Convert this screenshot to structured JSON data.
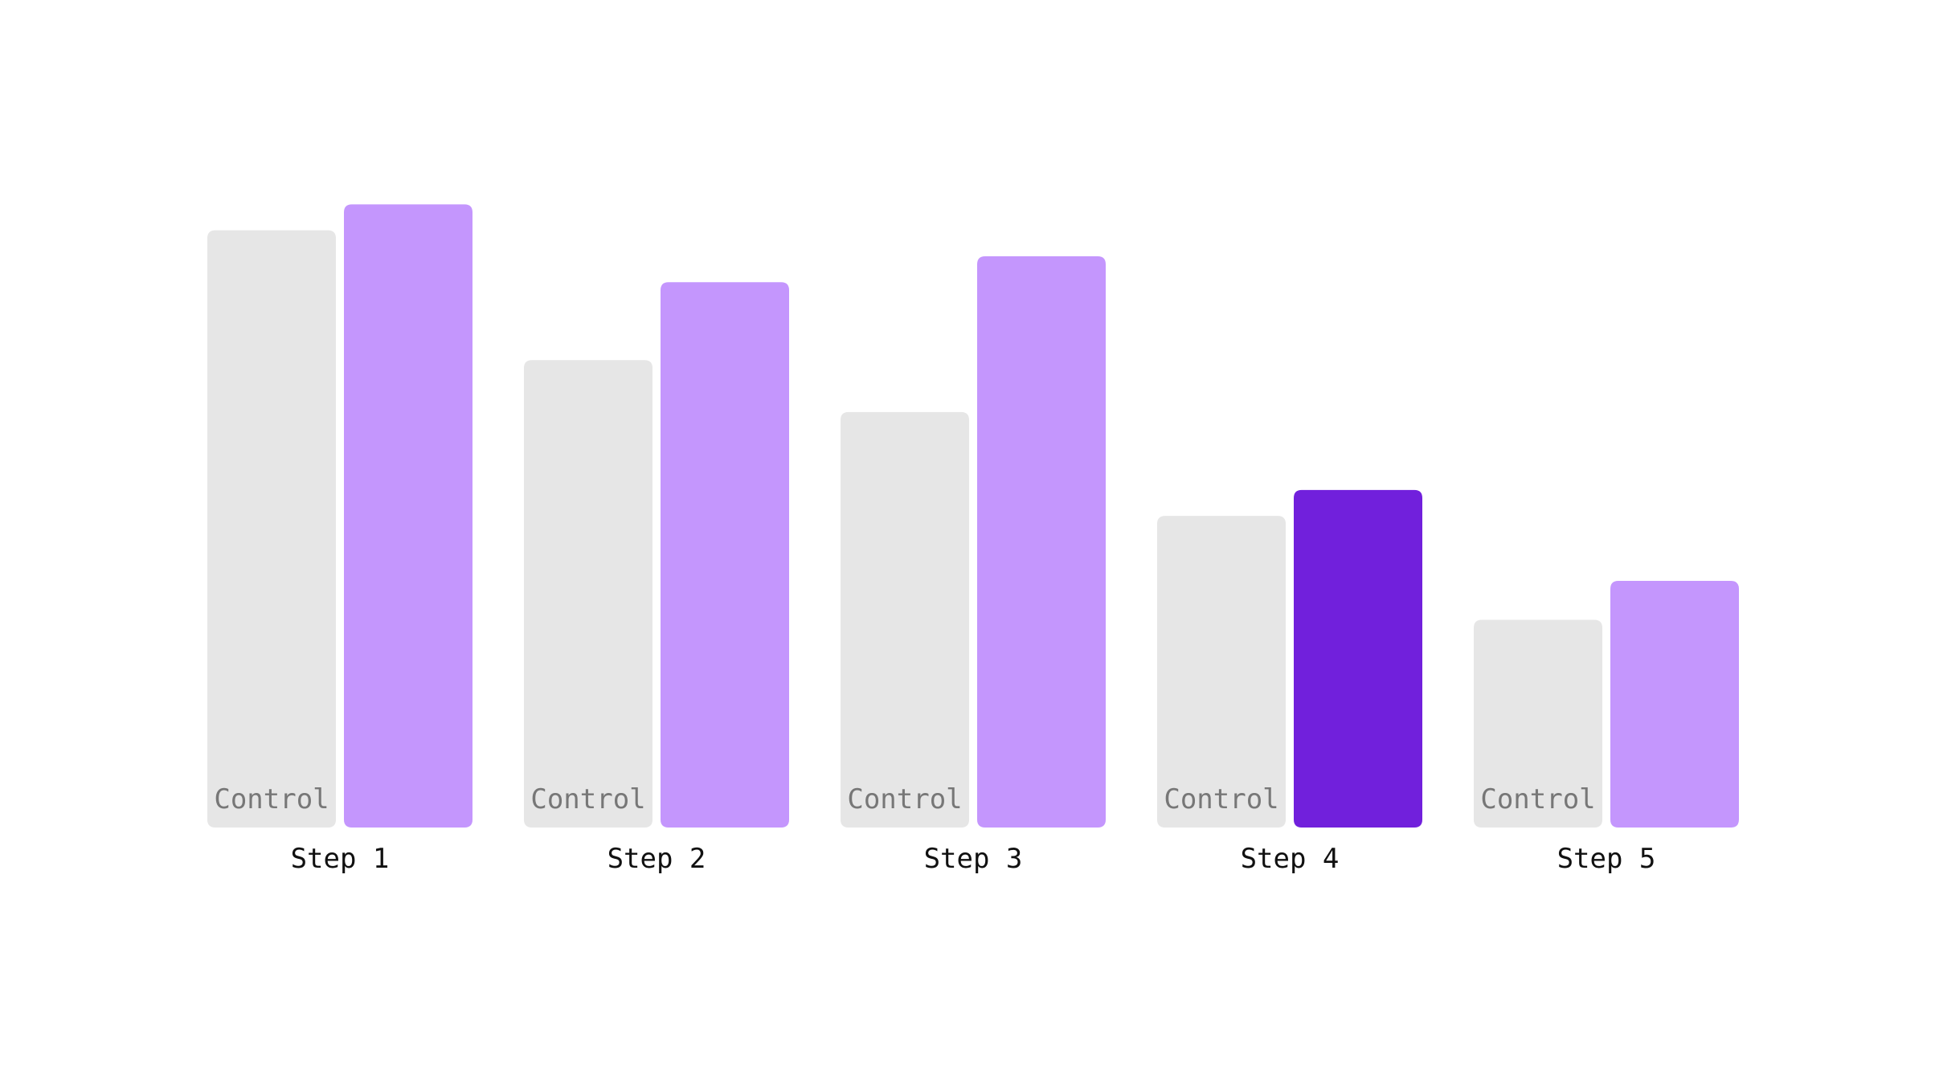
{
  "chart_data": {
    "type": "bar",
    "categories": [
      "Step 1",
      "Step 2",
      "Step 3",
      "Step 4",
      "Step 5"
    ],
    "series": [
      {
        "name": "Control",
        "color": "#e6e6e6",
        "label_color": "#777777",
        "values": [
          92,
          72,
          64,
          48,
          32
        ]
      },
      {
        "color": "#c496fd",
        "values": [
          96,
          84,
          88,
          52,
          38
        ]
      }
    ],
    "highlight": {
      "category_index": 3,
      "series_index": 1,
      "color": "#7120dc"
    },
    "ylim": [
      0,
      100
    ],
    "grid": false,
    "legend": "none"
  }
}
